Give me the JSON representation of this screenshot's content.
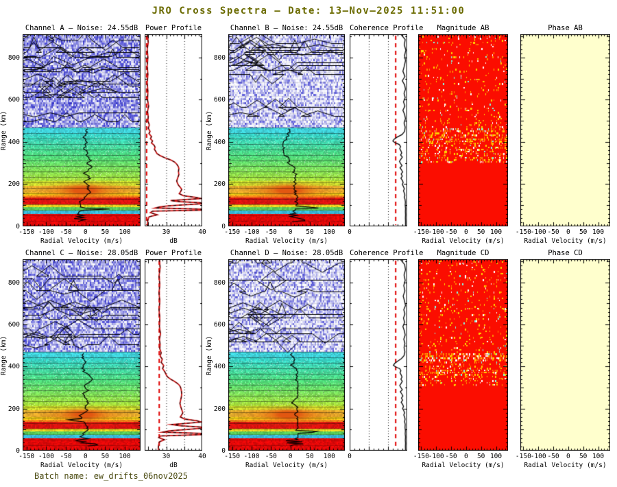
{
  "window": {
    "title": "JRO Cross Spectra – Date: 13–Nov–2025 11:51:00",
    "batch_label": "Batch name: ew_drifts_06nov2025"
  },
  "colors": {
    "title_text": "#6b6b00",
    "magnitude_background": "#fb0d00",
    "phase_background": "#ffffcd",
    "noise_marker_red": "#e00000",
    "power_curve_red": "#cc1111",
    "spectrogram_bottom_red": "#e00808"
  },
  "panels": [
    {
      "id": "channel-a",
      "kind": "spectrogram",
      "row": 0,
      "col": "spec1",
      "title": "Channel A – Noise: 24.55dB",
      "yticks": true,
      "seed": 11,
      "upper_gamma": 1.1,
      "upper_density": 0.45,
      "blob": 1.0,
      "traces": 15,
      "dart_range": 82,
      "dart_amp": 46
    },
    {
      "id": "power-ab",
      "kind": "power",
      "row": 0,
      "col": "power",
      "title": "Power Profile",
      "noise_db": 24.55,
      "curve": "power_ab"
    },
    {
      "id": "channel-b",
      "kind": "spectrogram",
      "row": 0,
      "col": "spec2",
      "title": "Channel B – Noise: 24.55dB",
      "yticks": true,
      "seed": 22,
      "upper_gamma": 2.0,
      "upper_density": 0.3,
      "blob": 1.0,
      "traces": 11,
      "dart_range": 88,
      "dart_amp": 38
    },
    {
      "id": "coherence-ab",
      "kind": "coherence",
      "row": 0,
      "col": "coh",
      "title": "Coherence Profile",
      "curve": "coherence_ab"
    },
    {
      "id": "magnitude-ab",
      "kind": "magnitude",
      "row": 0,
      "col": "mag",
      "title": "Magnitude AB",
      "seed": 7,
      "solid_below": 300,
      "dense": 0.3,
      "sparse": 0.11,
      "hot": [
        455,
        435,
        415
      ]
    },
    {
      "id": "phase-ab",
      "kind": "phase",
      "row": 0,
      "col": "phase",
      "title": "Phase AB"
    },
    {
      "id": "channel-c",
      "kind": "spectrogram",
      "row": 1,
      "col": "spec1",
      "title": "Channel C – Noise: 28.05dB",
      "yticks": true,
      "seed": 33,
      "upper_gamma": 1.2,
      "upper_density": 0.42,
      "blob": 0.85,
      "traces": 13,
      "dart_range": 145,
      "dart_amp": -34
    },
    {
      "id": "power-cd",
      "kind": "power",
      "row": 1,
      "col": "power",
      "title": "Power Profile",
      "noise_db": 28.05,
      "curve": "power_cd"
    },
    {
      "id": "channel-d",
      "kind": "spectrogram",
      "row": 1,
      "col": "spec2",
      "title": "Channel D – Noise: 28.05dB",
      "yticks": true,
      "seed": 44,
      "upper_gamma": 1.9,
      "upper_density": 0.32,
      "blob": 1.0,
      "traces": 10,
      "dart_range": 90,
      "dart_amp": 42
    },
    {
      "id": "coherence-cd",
      "kind": "coherence",
      "row": 1,
      "col": "coh",
      "title": "Coherence Profile",
      "curve": "coherence_cd"
    },
    {
      "id": "magnitude-cd",
      "kind": "magnitude",
      "row": 1,
      "col": "mag",
      "title": "Magnitude CD",
      "seed": 9,
      "solid_below": 310,
      "dense": 0.26,
      "sparse": 0.12,
      "hot": [
        460,
        440,
        380
      ]
    },
    {
      "id": "phase-cd",
      "kind": "phase",
      "row": 1,
      "col": "phase",
      "title": "Phase CD"
    }
  ],
  "chart_data": {
    "type": "heatmap",
    "title": "JRO Cross Spectra – Date: 13-Nov-2025 11:51:00",
    "x_axis": {
      "label": "Radial Velocity (m/s)",
      "range": [
        -160,
        140
      ],
      "ticks": [
        -150,
        -100,
        -50,
        0,
        50,
        100
      ]
    },
    "y_axis": {
      "label": "Range (km)",
      "range": [
        0,
        910
      ],
      "ticks": [
        0,
        200,
        400,
        600,
        800
      ]
    },
    "power_axis": {
      "label": "dB",
      "range": [
        24,
        40
      ],
      "ticks": [
        30,
        40
      ],
      "grid_dotted": [
        30,
        35
      ]
    },
    "coherence_axis": {
      "label": "",
      "range": [
        0,
        1
      ],
      "ticks": [
        0
      ],
      "grid_dotted": [
        0.333,
        0.667
      ],
      "threshold_line": 0.8
    },
    "noise_levels_db": {
      "channel_a": 24.55,
      "channel_b": 24.55,
      "channel_c": 28.05,
      "channel_d": 28.05
    },
    "spectrogram_bands": [
      {
        "from": 0,
        "to": 60,
        "c": "#e00808"
      },
      {
        "from": 60,
        "to": 78,
        "c": "#38b8d8"
      },
      {
        "from": 78,
        "to": 92,
        "c": "#58c858"
      },
      {
        "from": 92,
        "to": 105,
        "c": "#e8d020"
      },
      {
        "from": 105,
        "to": 138,
        "c": "#d81010"
      },
      {
        "from": 138,
        "to": 148,
        "c": "#f08018"
      },
      {
        "from": 148,
        "to": 160,
        "c": "#f0d518"
      },
      {
        "from": 160,
        "to": 195,
        "c": "#e0b030"
      },
      {
        "from": 195,
        "to": 215,
        "c": "#c8e030"
      },
      {
        "from": 215,
        "to": 330,
        "c1": "#a8de38",
        "c2": "#4fd878"
      },
      {
        "from": 330,
        "to": 445,
        "c1": "#4fd878",
        "c2": "#35d0cc"
      },
      {
        "from": 445,
        "to": 470,
        "c": "#3fd0d8"
      }
    ],
    "echo_blob": {
      "center_velocity_ms": -5,
      "center_range_km": 172
    },
    "curves": {
      "power_ab": [
        [
          910,
          24.8
        ],
        [
          870,
          25.0
        ],
        [
          840,
          24.7
        ],
        [
          800,
          24.9
        ],
        [
          760,
          24.7
        ],
        [
          720,
          24.9
        ],
        [
          680,
          24.7
        ],
        [
          640,
          24.9
        ],
        [
          600,
          24.8
        ],
        [
          570,
          25.1
        ],
        [
          545,
          24.8
        ],
        [
          520,
          25.0
        ],
        [
          500,
          24.9
        ],
        [
          480,
          25.3
        ],
        [
          465,
          25.0
        ],
        [
          450,
          25.5
        ],
        [
          440,
          25.2
        ],
        [
          425,
          25.9
        ],
        [
          415,
          25.6
        ],
        [
          405,
          26.2
        ],
        [
          395,
          25.9
        ],
        [
          385,
          26.6
        ],
        [
          375,
          26.9
        ],
        [
          365,
          26.7
        ],
        [
          355,
          27.1
        ],
        [
          345,
          27.4
        ],
        [
          335,
          28.3
        ],
        [
          325,
          29.6
        ],
        [
          315,
          31.2
        ],
        [
          305,
          32.3
        ],
        [
          295,
          32.9
        ],
        [
          285,
          33.3
        ],
        [
          275,
          33.5
        ],
        [
          260,
          33.4
        ],
        [
          245,
          33.5
        ],
        [
          230,
          33.2
        ],
        [
          215,
          32.9
        ],
        [
          205,
          33.1
        ],
        [
          195,
          33.4
        ],
        [
          185,
          33.9
        ],
        [
          175,
          34.3
        ],
        [
          165,
          34.0
        ],
        [
          155,
          33.6
        ],
        [
          145,
          34.8
        ],
        [
          138,
          38.0
        ],
        [
          132,
          40.2
        ],
        [
          127,
          35.5
        ],
        [
          122,
          31.2
        ],
        [
          117,
          33.8
        ],
        [
          112,
          39.6
        ],
        [
          107,
          41.0
        ],
        [
          102,
          35.0
        ],
        [
          97,
          30.5
        ],
        [
          92,
          28.2
        ],
        [
          87,
          27.0
        ],
        [
          82,
          40.6
        ],
        [
          77,
          40.6
        ],
        [
          72,
          26.2
        ],
        [
          65,
          25.6
        ],
        [
          55,
          27.5
        ],
        [
          45,
          25.2
        ],
        [
          30,
          24.9
        ],
        [
          15,
          24.8
        ],
        [
          0,
          24.8
        ]
      ],
      "power_cd": [
        [
          910,
          28.1
        ],
        [
          870,
          28.3
        ],
        [
          830,
          28.0
        ],
        [
          790,
          28.2
        ],
        [
          750,
          28.0
        ],
        [
          710,
          28.2
        ],
        [
          670,
          28.0
        ],
        [
          630,
          28.2
        ],
        [
          590,
          28.1
        ],
        [
          555,
          28.4
        ],
        [
          530,
          28.1
        ],
        [
          505,
          28.3
        ],
        [
          485,
          28.2
        ],
        [
          465,
          28.6
        ],
        [
          450,
          28.3
        ],
        [
          435,
          28.9
        ],
        [
          420,
          28.6
        ],
        [
          405,
          29.3
        ],
        [
          390,
          29.0
        ],
        [
          375,
          29.6
        ],
        [
          360,
          30.0
        ],
        [
          350,
          30.4
        ],
        [
          340,
          31.2
        ],
        [
          330,
          32.2
        ],
        [
          320,
          33.1
        ],
        [
          310,
          33.7
        ],
        [
          300,
          34.0
        ],
        [
          285,
          34.2
        ],
        [
          270,
          34.3
        ],
        [
          255,
          34.2
        ],
        [
          240,
          34.0
        ],
        [
          225,
          33.8
        ],
        [
          210,
          34.0
        ],
        [
          195,
          34.3
        ],
        [
          180,
          34.6
        ],
        [
          170,
          34.3
        ],
        [
          160,
          33.9
        ],
        [
          150,
          35.2
        ],
        [
          142,
          38.5
        ],
        [
          136,
          40.3
        ],
        [
          130,
          35.8
        ],
        [
          124,
          31.5
        ],
        [
          118,
          34.2
        ],
        [
          112,
          39.8
        ],
        [
          106,
          41.0
        ],
        [
          100,
          35.2
        ],
        [
          94,
          30.8
        ],
        [
          88,
          29.0
        ],
        [
          82,
          40.6
        ],
        [
          76,
          40.6
        ],
        [
          70,
          28.4
        ],
        [
          62,
          27.9
        ],
        [
          52,
          29.5
        ],
        [
          42,
          28.1
        ],
        [
          28,
          27.9
        ],
        [
          14,
          27.8
        ],
        [
          0,
          27.8
        ]
      ],
      "coherence_ab": [
        [
          910,
          0.89
        ],
        [
          885,
          0.965
        ],
        [
          860,
          0.95
        ],
        [
          835,
          0.975
        ],
        [
          810,
          0.955
        ],
        [
          785,
          0.97
        ],
        [
          760,
          0.95
        ],
        [
          735,
          0.925
        ],
        [
          710,
          0.96
        ],
        [
          690,
          0.915
        ],
        [
          670,
          0.955
        ],
        [
          650,
          0.97
        ],
        [
          630,
          0.945
        ],
        [
          610,
          0.965
        ],
        [
          590,
          0.935
        ],
        [
          570,
          0.96
        ],
        [
          550,
          0.925
        ],
        [
          530,
          0.955
        ],
        [
          510,
          0.97
        ],
        [
          490,
          0.945
        ],
        [
          470,
          0.965
        ],
        [
          450,
          0.955
        ],
        [
          435,
          0.91
        ],
        [
          422,
          0.82
        ],
        [
          412,
          0.77
        ],
        [
          404,
          0.75
        ],
        [
          396,
          0.79
        ],
        [
          388,
          0.86
        ],
        [
          378,
          0.885
        ],
        [
          368,
          0.87
        ],
        [
          358,
          0.89
        ],
        [
          348,
          0.905
        ],
        [
          338,
          0.885
        ],
        [
          328,
          0.915
        ],
        [
          318,
          0.89
        ],
        [
          308,
          0.865
        ],
        [
          298,
          0.885
        ],
        [
          288,
          0.91
        ],
        [
          278,
          0.875
        ],
        [
          268,
          0.9
        ],
        [
          258,
          0.92
        ],
        [
          248,
          0.895
        ],
        [
          238,
          0.915
        ],
        [
          228,
          0.89
        ],
        [
          218,
          0.915
        ],
        [
          208,
          0.93
        ],
        [
          198,
          0.915
        ],
        [
          188,
          0.935
        ],
        [
          178,
          0.95
        ],
        [
          168,
          0.935
        ],
        [
          158,
          0.95
        ],
        [
          148,
          0.96
        ],
        [
          138,
          0.95
        ],
        [
          128,
          0.962
        ],
        [
          115,
          0.968
        ],
        [
          100,
          0.965
        ],
        [
          85,
          0.97
        ],
        [
          70,
          0.968
        ],
        [
          55,
          0.97
        ],
        [
          40,
          0.968
        ],
        [
          25,
          0.97
        ],
        [
          0,
          0.97
        ]
      ],
      "coherence_cd": [
        [
          910,
          0.88
        ],
        [
          885,
          0.955
        ],
        [
          860,
          0.97
        ],
        [
          835,
          0.945
        ],
        [
          810,
          0.965
        ],
        [
          785,
          0.94
        ],
        [
          760,
          0.96
        ],
        [
          735,
          0.93
        ],
        [
          710,
          0.955
        ],
        [
          690,
          0.97
        ],
        [
          670,
          0.94
        ],
        [
          650,
          0.96
        ],
        [
          630,
          0.935
        ],
        [
          610,
          0.955
        ],
        [
          590,
          0.925
        ],
        [
          570,
          0.95
        ],
        [
          550,
          0.965
        ],
        [
          530,
          0.94
        ],
        [
          510,
          0.96
        ],
        [
          490,
          0.945
        ],
        [
          470,
          0.96
        ],
        [
          452,
          0.945
        ],
        [
          438,
          0.9
        ],
        [
          425,
          0.83
        ],
        [
          414,
          0.78
        ],
        [
          406,
          0.76
        ],
        [
          398,
          0.8
        ],
        [
          390,
          0.87
        ],
        [
          380,
          0.89
        ],
        [
          370,
          0.875
        ],
        [
          360,
          0.895
        ],
        [
          350,
          0.91
        ],
        [
          340,
          0.89
        ],
        [
          330,
          0.915
        ],
        [
          320,
          0.895
        ],
        [
          310,
          0.87
        ],
        [
          300,
          0.89
        ],
        [
          290,
          0.915
        ],
        [
          280,
          0.88
        ],
        [
          270,
          0.905
        ],
        [
          260,
          0.925
        ],
        [
          250,
          0.9
        ],
        [
          240,
          0.92
        ],
        [
          230,
          0.895
        ],
        [
          220,
          0.92
        ],
        [
          210,
          0.935
        ],
        [
          200,
          0.92
        ],
        [
          190,
          0.94
        ],
        [
          180,
          0.955
        ],
        [
          170,
          0.94
        ],
        [
          160,
          0.955
        ],
        [
          150,
          0.963
        ],
        [
          138,
          0.955
        ],
        [
          125,
          0.965
        ],
        [
          110,
          0.962
        ],
        [
          95,
          0.968
        ],
        [
          80,
          0.965
        ],
        [
          65,
          0.97
        ],
        [
          50,
          0.967
        ],
        [
          35,
          0.97
        ],
        [
          20,
          0.968
        ],
        [
          0,
          0.97
        ]
      ]
    }
  }
}
